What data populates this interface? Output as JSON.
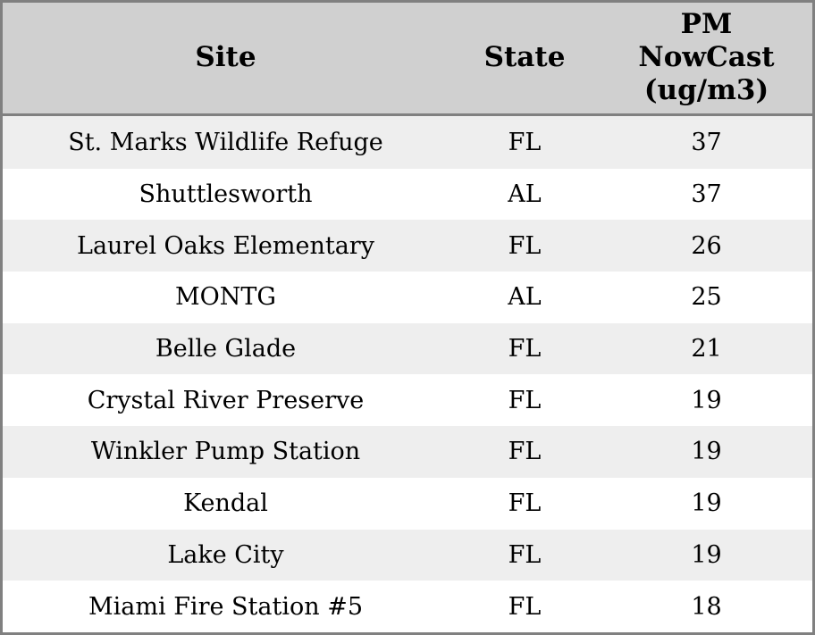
{
  "chart_data": {
    "type": "table",
    "columns": [
      "Site",
      "State",
      "PM NowCast (ug/m3)"
    ],
    "rows": [
      [
        "St. Marks Wildlife Refuge",
        "FL",
        37
      ],
      [
        "Shuttlesworth",
        "AL",
        37
      ],
      [
        "Laurel Oaks Elementary",
        "FL",
        26
      ],
      [
        "MONTG",
        "AL",
        25
      ],
      [
        "Belle Glade",
        "FL",
        21
      ],
      [
        "Crystal River Preserve",
        "FL",
        19
      ],
      [
        "Winkler Pump Station",
        "FL",
        19
      ],
      [
        "Kendal",
        "FL",
        19
      ],
      [
        "Lake City",
        "FL",
        19
      ],
      [
        "Miami Fire Station #5",
        "FL",
        18
      ]
    ]
  },
  "header": {
    "site": "Site",
    "state": "State",
    "pm": "PM\nNowCast\n(ug/m3)"
  },
  "colors": {
    "border": "#808080",
    "header_bg": "#d0d0d0",
    "row_alt_bg": "#eeeeee",
    "row_bg": "#ffffff",
    "text": "#000000"
  }
}
